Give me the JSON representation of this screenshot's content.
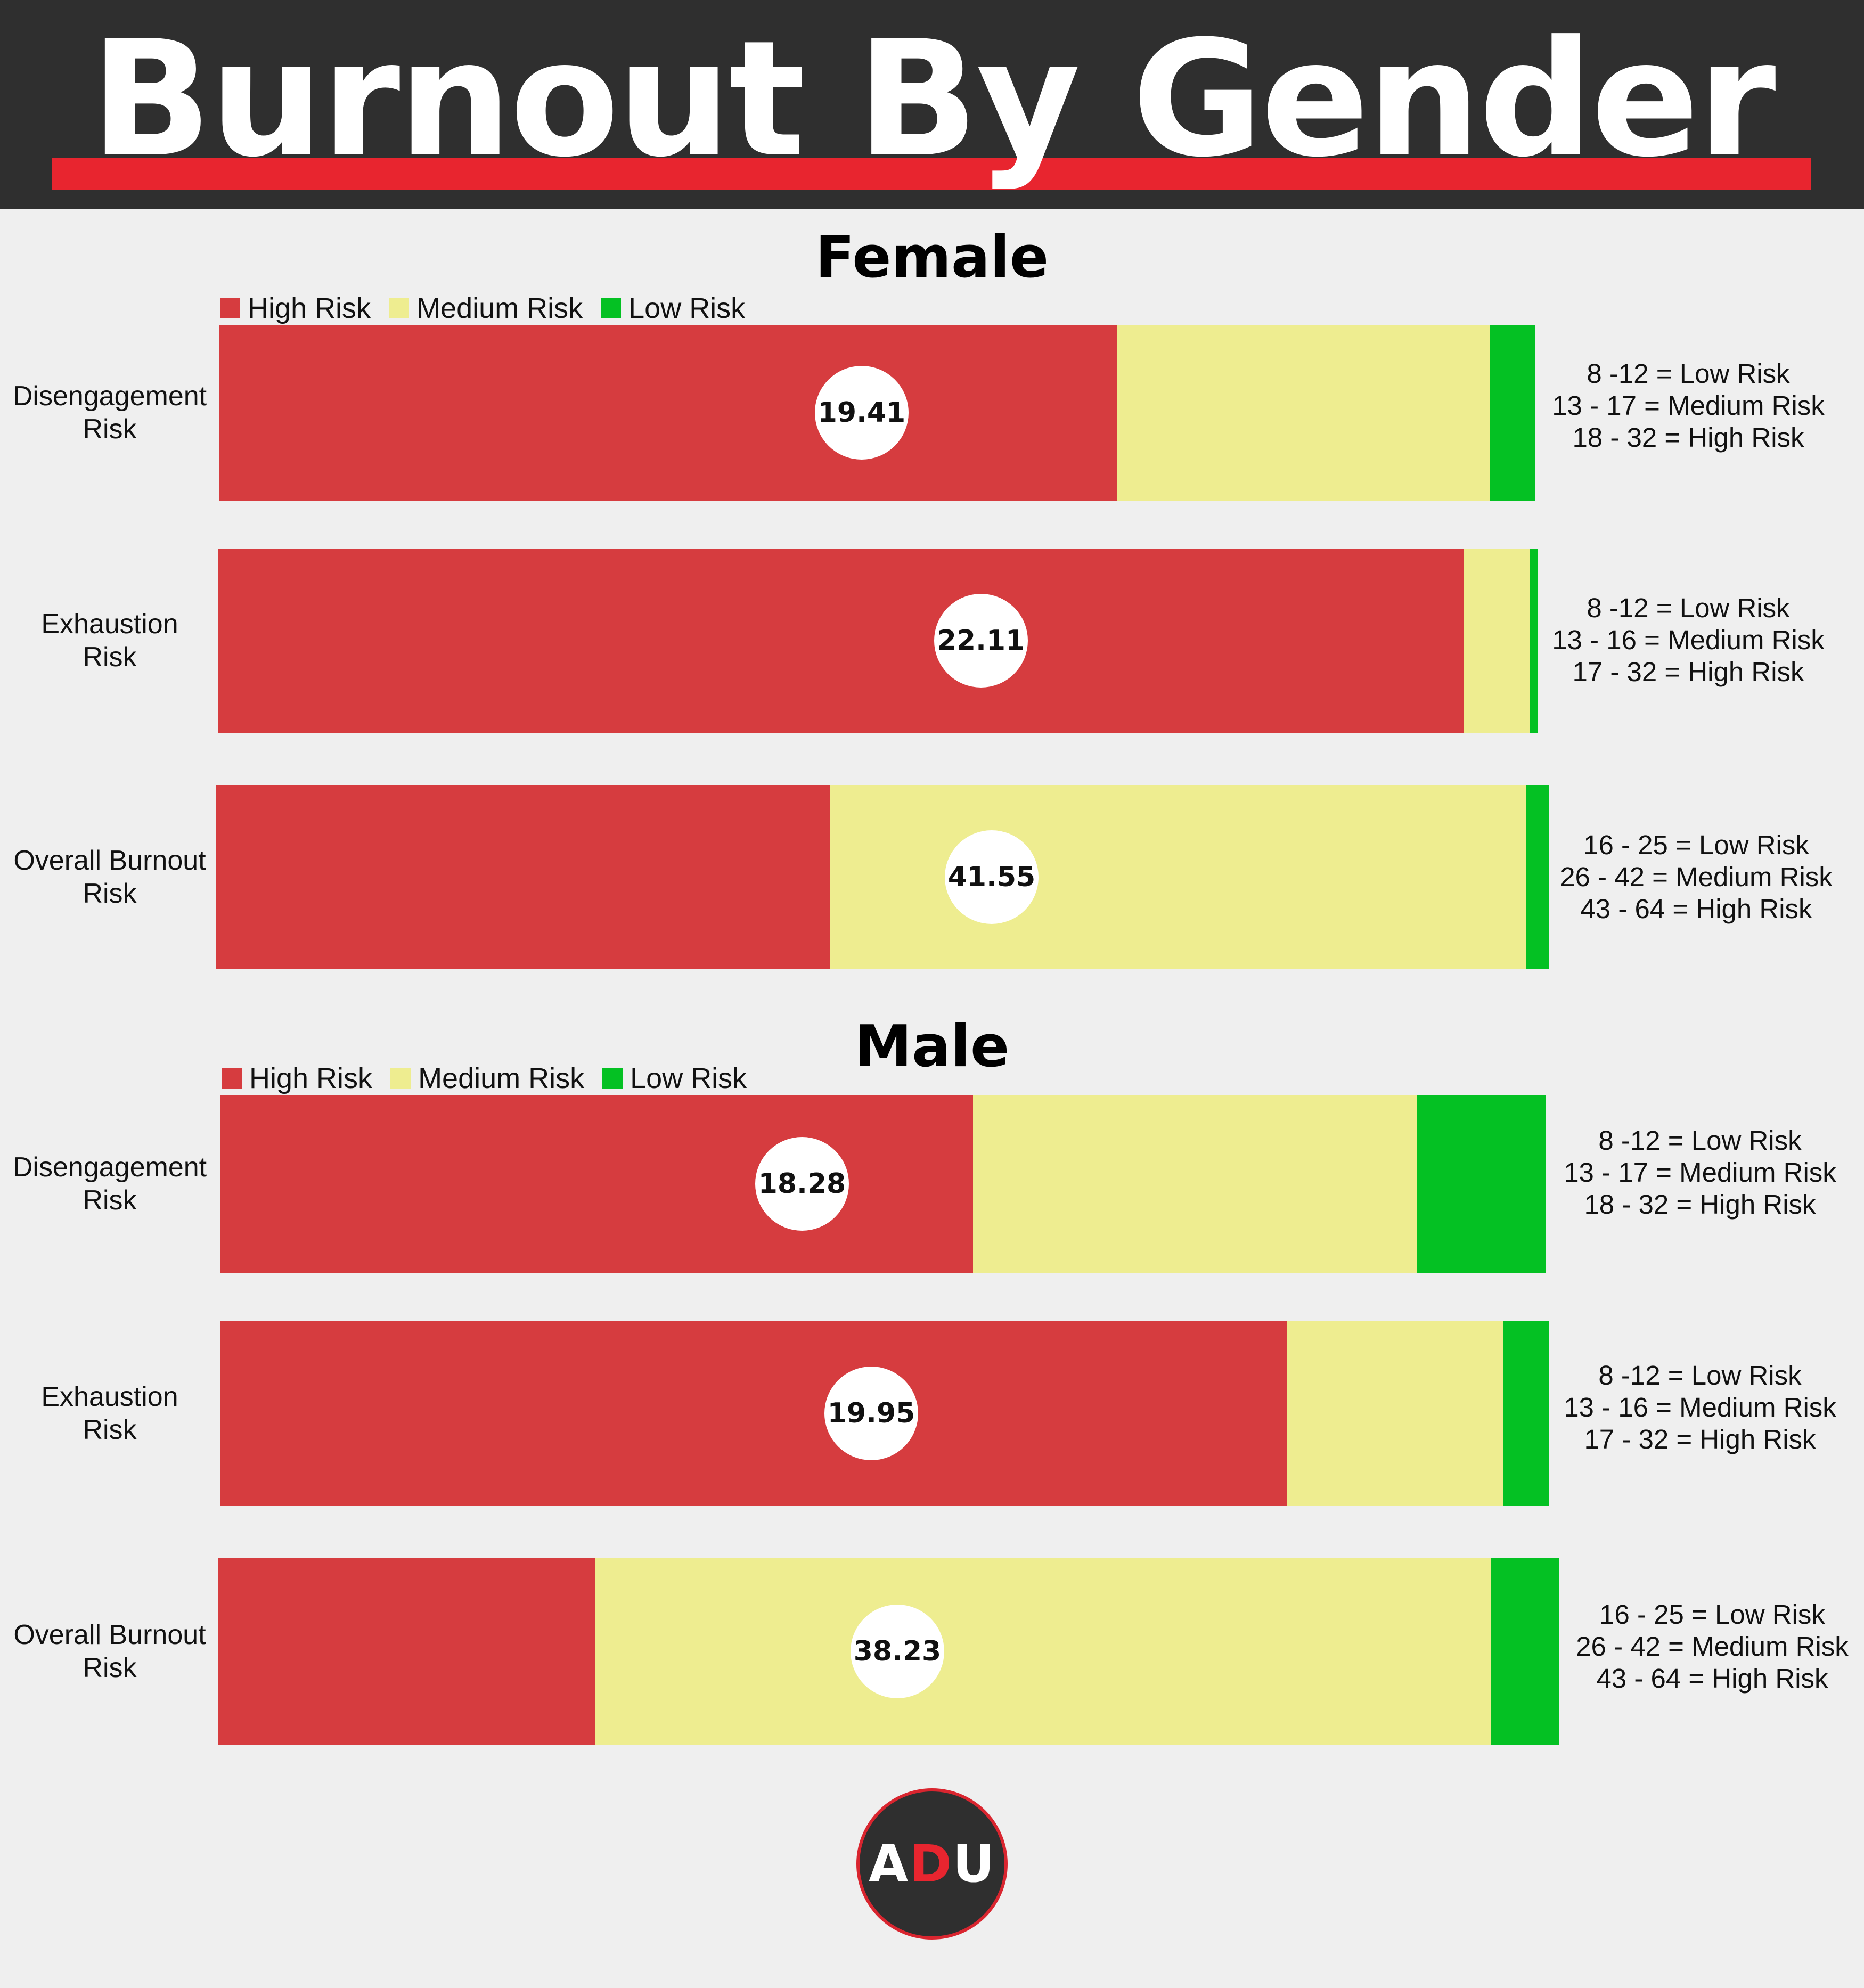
{
  "title": "Burnout By Gender",
  "colors": {
    "high": "#d63c3f",
    "medium": "#eeed90",
    "low": "#04c123",
    "title_band": "#2f2f2f",
    "underline": "#e8252f"
  },
  "legend": [
    "High Risk",
    "Medium Risk",
    "Low Risk"
  ],
  "logo": {
    "letters": [
      "A",
      "D",
      "U"
    ],
    "letter_colors": [
      "#ffffff",
      "#e8252f",
      "#ffffff"
    ]
  },
  "chart_data": [
    {
      "type": "bar",
      "title": "Female",
      "orientation": "horizontal-stacked",
      "series_names": [
        "High Risk",
        "Medium Risk",
        "Low Risk"
      ],
      "rows": [
        {
          "label": [
            "Disengagement",
            "Risk"
          ],
          "score": "19.41",
          "shares": [
            0.682,
            0.284,
            0.034
          ],
          "ranges": [
            "8 -12 = Low Risk",
            "13 - 17 = Medium Risk",
            "18 - 32 = High Risk"
          ]
        },
        {
          "label": [
            "Exhaustion",
            "Risk"
          ],
          "score": "22.11",
          "shares": [
            0.944,
            0.05,
            0.006
          ],
          "ranges": [
            "8 -12 = Low Risk",
            "13 - 16 = Medium Risk",
            "17 - 32 = High Risk"
          ]
        },
        {
          "label": [
            "Overall Burnout",
            "Risk"
          ],
          "score": "41.55",
          "shares": [
            0.461,
            0.522,
            0.017
          ],
          "ranges": [
            "16 - 25 = Low Risk",
            "26 - 42 = Medium Risk",
            "43 - 64 = High Risk"
          ]
        }
      ]
    },
    {
      "type": "bar",
      "title": "Male",
      "orientation": "horizontal-stacked",
      "series_names": [
        "High Risk",
        "Medium Risk",
        "Low Risk"
      ],
      "rows": [
        {
          "label": [
            "Disengagement",
            "Risk"
          ],
          "score": "18.28",
          "shares": [
            0.568,
            0.335,
            0.097
          ],
          "ranges": [
            "8 -12 = Low Risk",
            "13 - 17 = Medium Risk",
            "18 - 32 = High Risk"
          ]
        },
        {
          "label": [
            "Exhaustion",
            "Risk"
          ],
          "score": "19.95",
          "shares": [
            0.803,
            0.163,
            0.034
          ],
          "ranges": [
            "8 -12 = Low Risk",
            "13 - 16 = Medium Risk",
            "17 - 32 = High Risk"
          ]
        },
        {
          "label": [
            "Overall Burnout",
            "Risk"
          ],
          "score": "38.23",
          "shares": [
            0.281,
            0.668,
            0.051
          ],
          "ranges": [
            "16 - 25 = Low Risk",
            "26 - 42 = Medium Risk",
            "43 - 64 = High Risk"
          ]
        }
      ]
    }
  ]
}
